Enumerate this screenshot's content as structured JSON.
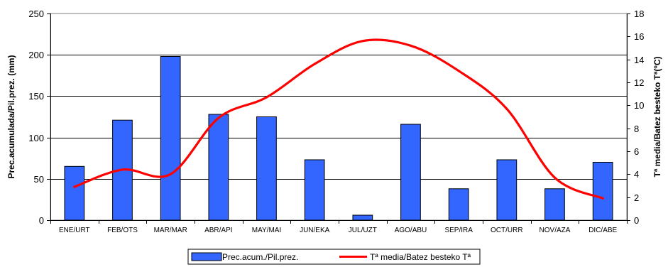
{
  "chart_data": {
    "type": "bar",
    "categories": [
      "ENE/URT",
      "FEB/OTS",
      "MAR/MAR",
      "ABR/API",
      "MAY/MAI",
      "JUN/EKA",
      "JUL/UZT",
      "AGO/ABU",
      "SEP/IRA",
      "OCT/URR",
      "NOV/AZA",
      "DIC/ABE"
    ],
    "series": [
      {
        "name": "Prec.acum./Pil.prez.",
        "type": "bar",
        "axis": "left",
        "color": "#3366FF",
        "values": [
          65,
          121,
          198,
          128,
          125,
          73,
          6,
          116,
          38,
          73,
          38,
          70
        ]
      },
      {
        "name": "Tª media/Batez besteko Tª",
        "type": "line",
        "axis": "right",
        "color": "#FF0000",
        "values": [
          2.9,
          4.4,
          4.0,
          8.9,
          10.7,
          13.6,
          15.6,
          15.2,
          13.0,
          9.7,
          3.7,
          1.9
        ]
      }
    ],
    "ylabel": "Prec.acumulada/Pil.prez. (mm)",
    "y2label": "Tª media/Batez besteko Tª(ºC)",
    "ylim": [
      0,
      250
    ],
    "yticks": [
      0,
      50,
      100,
      150,
      200,
      250
    ],
    "y2lim": [
      0,
      18
    ],
    "y2ticks": [
      0,
      2,
      4,
      6,
      8,
      10,
      12,
      14,
      16,
      18
    ],
    "grid": true,
    "legend": "bottom-center"
  }
}
